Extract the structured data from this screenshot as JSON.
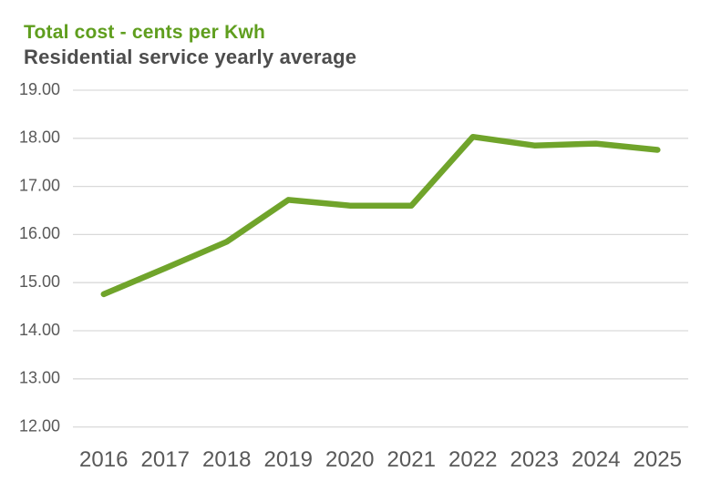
{
  "header": {
    "title": "Total cost - cents per Kwh",
    "subtitle": "Residential service yearly average"
  },
  "colors": {
    "background": "#FFFFFF",
    "title_green": "#5F9E1E",
    "subtitle_gray": "#4D4D4D",
    "series_green": "#70A42B",
    "gridline": "#D9D9D9",
    "axis_label": "#595959"
  },
  "chart_data": {
    "type": "line",
    "title": "Total cost - cents per Kwh",
    "subtitle": "Residential service yearly average",
    "categories": [
      "2016",
      "2017",
      "2018",
      "2019",
      "2020",
      "2021",
      "2022",
      "2023",
      "2024",
      "2025"
    ],
    "series": [
      {
        "name": "Total cost - cents per Kwh",
        "color": "#70A42B",
        "values": [
          14.76,
          15.3,
          15.85,
          16.72,
          16.6,
          16.6,
          18.03,
          17.85,
          17.89,
          17.76
        ]
      }
    ],
    "xlabel": "",
    "ylabel": "",
    "ylim": [
      12,
      19
    ],
    "y_ticks": [
      19,
      18,
      17,
      16,
      15,
      14,
      13,
      12
    ],
    "y_tick_decimals": 2,
    "grid": true,
    "legend_position": "none"
  }
}
